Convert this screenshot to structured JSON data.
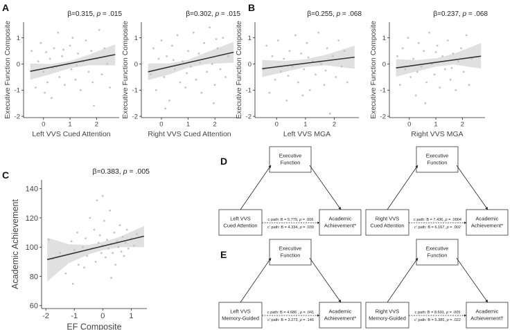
{
  "panel_letters": {
    "A": "A",
    "B": "B",
    "C": "C",
    "D": "D",
    "E": "E"
  },
  "chart_data": [
    {
      "id": "A1",
      "type": "scatter",
      "title_beta": "β=0.315, ",
      "title_p_label": "p",
      " title_p_value": "",
      "title_p": " = .015",
      "xlabel": "Left VVS Cued Attention",
      "ylabel": "Executive Function Composite",
      "xlim": [
        -0.75,
        2.85
      ],
      "ylim": [
        -2.05,
        1.6
      ],
      "xticks": [
        0,
        1,
        2
      ],
      "yticks": [
        -2,
        -1,
        0,
        1
      ],
      "fit": {
        "x": [
          -0.5,
          2.7
        ],
        "y": [
          -0.28,
          0.36
        ]
      },
      "ci": {
        "x": [
          -0.5,
          0.3,
          1.0,
          1.7,
          2.7
        ],
        "upper": [
          0.02,
          0.0,
          0.12,
          0.35,
          0.75
        ],
        "lower": [
          -0.6,
          -0.38,
          -0.16,
          -0.05,
          -0.05
        ]
      },
      "points": [
        [
          -0.45,
          0.5
        ],
        [
          -0.3,
          -0.9
        ],
        [
          -0.2,
          0.1
        ],
        [
          -0.1,
          0.8
        ],
        [
          0.0,
          -0.3
        ],
        [
          0.1,
          0.45
        ],
        [
          0.15,
          -0.7
        ],
        [
          0.25,
          0.2
        ],
        [
          0.3,
          -1.3
        ],
        [
          0.4,
          0.6
        ],
        [
          0.5,
          -0.1
        ],
        [
          0.55,
          1.2
        ],
        [
          0.6,
          -0.5
        ],
        [
          0.7,
          0.3
        ],
        [
          0.8,
          -0.8
        ],
        [
          0.9,
          0.0
        ],
        [
          1.0,
          0.7
        ],
        [
          1.05,
          -0.2
        ],
        [
          1.1,
          1.0
        ],
        [
          1.2,
          -0.6
        ],
        [
          1.3,
          0.4
        ],
        [
          1.4,
          -1.0
        ],
        [
          1.5,
          0.1
        ],
        [
          1.6,
          0.9
        ],
        [
          1.7,
          -0.3
        ],
        [
          1.8,
          0.5
        ],
        [
          1.9,
          -1.6
        ],
        [
          2.0,
          0.2
        ],
        [
          2.1,
          1.3
        ],
        [
          2.2,
          -0.4
        ],
        [
          2.3,
          0.6
        ],
        [
          2.4,
          0.0
        ],
        [
          2.5,
          -0.9
        ],
        [
          0.35,
          -0.15
        ],
        [
          0.75,
          0.55
        ],
        [
          1.25,
          -0.05
        ],
        [
          0.05,
          -1.1
        ],
        [
          1.85,
          -0.7
        ]
      ]
    },
    {
      "id": "A2",
      "type": "scatter",
      "title_beta": "β=0.302, ",
      "title_p_label": "p",
      "title_p": " = .015",
      "xlabel": "Right VVS Cued Attention",
      "ylabel": "Executive Function Composite",
      "xlim": [
        -0.75,
        2.85
      ],
      "ylim": [
        -2.05,
        1.6
      ],
      "xticks": [
        0,
        1,
        2
      ],
      "yticks": [
        -2,
        -1,
        0,
        1
      ],
      "fit": {
        "x": [
          -0.5,
          2.7
        ],
        "y": [
          -0.3,
          0.45
        ]
      },
      "ci": {
        "x": [
          -0.5,
          0.3,
          1.0,
          1.7,
          2.7
        ],
        "upper": [
          0.02,
          0.02,
          0.16,
          0.45,
          0.85
        ],
        "lower": [
          -0.62,
          -0.4,
          -0.14,
          0.0,
          0.05
        ]
      },
      "points": [
        [
          -0.4,
          -0.4
        ],
        [
          -0.3,
          0.6
        ],
        [
          -0.2,
          -1.0
        ],
        [
          -0.1,
          0.2
        ],
        [
          0.0,
          0.9
        ],
        [
          0.1,
          -0.5
        ],
        [
          0.2,
          0.3
        ],
        [
          0.3,
          -1.4
        ],
        [
          0.4,
          0.7
        ],
        [
          0.5,
          -0.2
        ],
        [
          0.6,
          1.1
        ],
        [
          0.7,
          -0.7
        ],
        [
          0.8,
          0.1
        ],
        [
          0.9,
          -0.9
        ],
        [
          1.0,
          0.5
        ],
        [
          1.1,
          -0.1
        ],
        [
          1.2,
          1.2
        ],
        [
          1.3,
          -0.6
        ],
        [
          1.4,
          0.4
        ],
        [
          1.5,
          -1.1
        ],
        [
          1.6,
          0.8
        ],
        [
          1.7,
          -0.3
        ],
        [
          1.8,
          1.4
        ],
        [
          1.9,
          0.0
        ],
        [
          2.0,
          -0.8
        ],
        [
          2.1,
          0.6
        ],
        [
          2.2,
          -0.2
        ],
        [
          2.3,
          1.0
        ],
        [
          2.4,
          -0.5
        ],
        [
          2.5,
          0.3
        ],
        [
          0.45,
          0.15
        ],
        [
          0.95,
          -0.35
        ],
        [
          1.45,
          0.05
        ],
        [
          1.95,
          -1.5
        ],
        [
          0.15,
          -1.7
        ],
        [
          2.05,
          0.95
        ]
      ]
    },
    {
      "id": "B1",
      "type": "scatter",
      "title_beta": "β=0.255, ",
      "title_p_label": "p",
      "title_p": " = .068",
      "xlabel": "Left VVS MGA",
      "ylabel": "Executive Function Composite",
      "xlim": [
        -0.75,
        2.85
      ],
      "ylim": [
        -2.05,
        1.6
      ],
      "xticks": [
        0,
        1,
        2
      ],
      "yticks": [
        -2,
        -1,
        0,
        1
      ],
      "fit": {
        "x": [
          -0.5,
          2.7
        ],
        "y": [
          -0.18,
          0.26
        ]
      },
      "ci": {
        "x": [
          -0.5,
          0.3,
          1.0,
          1.7,
          2.7
        ],
        "upper": [
          0.15,
          0.12,
          0.18,
          0.35,
          0.7
        ],
        "lower": [
          -0.5,
          -0.3,
          -0.12,
          -0.05,
          -0.18
        ]
      },
      "points": [
        [
          -0.45,
          -0.2
        ],
        [
          -0.35,
          0.7
        ],
        [
          -0.25,
          -1.1
        ],
        [
          -0.15,
          0.3
        ],
        [
          -0.05,
          -0.6
        ],
        [
          0.05,
          0.9
        ],
        [
          0.15,
          -0.3
        ],
        [
          0.25,
          0.2
        ],
        [
          0.35,
          -1.4
        ],
        [
          0.45,
          0.5
        ],
        [
          0.55,
          -0.1
        ],
        [
          0.65,
          1.1
        ],
        [
          0.75,
          -0.7
        ],
        [
          0.85,
          0.4
        ],
        [
          0.95,
          -0.2
        ],
        [
          1.05,
          0.8
        ],
        [
          1.15,
          -1.0
        ],
        [
          1.25,
          0.1
        ],
        [
          1.35,
          -0.4
        ],
        [
          1.45,
          1.2
        ],
        [
          1.55,
          0.0
        ],
        [
          1.65,
          -0.8
        ],
        [
          1.75,
          0.6
        ],
        [
          1.85,
          -1.9
        ],
        [
          1.95,
          0.3
        ],
        [
          2.05,
          -0.5
        ],
        [
          2.15,
          0.9
        ],
        [
          2.25,
          -0.1
        ],
        [
          2.35,
          0.5
        ],
        [
          2.45,
          -0.7
        ],
        [
          0.4,
          -0.45
        ],
        [
          1.1,
          0.25
        ],
        [
          1.7,
          -0.25
        ],
        [
          0.9,
          -1.2
        ]
      ]
    },
    {
      "id": "B2",
      "type": "scatter",
      "title_beta": "β=0.237, ",
      "title_p_label": "p",
      "title_p": " = .068",
      "xlabel": "Right VVS MGA",
      "ylabel": "Executive Function Composite",
      "xlim": [
        -0.75,
        2.85
      ],
      "ylim": [
        -2.05,
        1.6
      ],
      "xticks": [
        0,
        1,
        2
      ],
      "yticks": [
        -2,
        -1,
        0,
        1
      ],
      "fit": {
        "x": [
          -0.5,
          2.7
        ],
        "y": [
          -0.15,
          0.3
        ]
      },
      "ci": {
        "x": [
          -0.5,
          0.3,
          1.0,
          1.7,
          2.7
        ],
        "upper": [
          0.18,
          0.15,
          0.22,
          0.4,
          0.8
        ],
        "lower": [
          -0.48,
          -0.28,
          -0.1,
          -0.02,
          -0.18
        ]
      },
      "points": [
        [
          -0.45,
          0.3
        ],
        [
          -0.35,
          -0.8
        ],
        [
          -0.25,
          0.6
        ],
        [
          -0.15,
          -0.2
        ],
        [
          -0.05,
          1.0
        ],
        [
          0.05,
          -0.5
        ],
        [
          0.15,
          0.2
        ],
        [
          0.25,
          -1.2
        ],
        [
          0.35,
          0.8
        ],
        [
          0.45,
          -0.1
        ],
        [
          0.55,
          0.5
        ],
        [
          0.65,
          -0.7
        ],
        [
          0.75,
          1.2
        ],
        [
          0.85,
          0.0
        ],
        [
          0.95,
          -0.4
        ],
        [
          1.05,
          0.7
        ],
        [
          1.15,
          -0.9
        ],
        [
          1.25,
          0.3
        ],
        [
          1.35,
          -0.2
        ],
        [
          1.45,
          0.9
        ],
        [
          1.55,
          -0.6
        ],
        [
          1.65,
          0.4
        ],
        [
          1.75,
          -1.0
        ],
        [
          1.85,
          0.1
        ],
        [
          1.95,
          0.6
        ],
        [
          2.05,
          -0.3
        ],
        [
          2.15,
          1.1
        ],
        [
          2.25,
          -0.8
        ],
        [
          2.35,
          0.2
        ],
        [
          0.3,
          -0.3
        ],
        [
          1.0,
          0.45
        ],
        [
          1.6,
          -0.15
        ],
        [
          0.6,
          -1.5
        ]
      ]
    },
    {
      "id": "C",
      "type": "scatter",
      "title_beta": "β=0.383, ",
      "title_p_label": "p",
      "title_p": " = .005",
      "xlabel": "EF Composite",
      "ylabel": "Academic Achievement",
      "xlim": [
        -2.15,
        1.55
      ],
      "ylim": [
        58,
        146
      ],
      "xticks": [
        -2,
        -1,
        0,
        1
      ],
      "yticks": [
        60,
        80,
        100,
        120,
        140
      ],
      "fit": {
        "x": [
          -1.95,
          1.45
        ],
        "y": [
          91.5,
          107.5
        ]
      },
      "ci": {
        "x": [
          -1.95,
          -1.2,
          -0.5,
          0.0,
          0.6,
          1.45
        ],
        "upper": [
          106.5,
          102.0,
          101.5,
          103.5,
          107.0,
          114.5
        ],
        "lower": [
          76.5,
          89.0,
          95.0,
          98.0,
          100.0,
          100.0
        ]
      },
      "points": [
        [
          -1.9,
          105
        ],
        [
          -1.75,
          92
        ],
        [
          -1.5,
          96
        ],
        [
          -1.3,
          82
        ],
        [
          -1.1,
          104
        ],
        [
          -1.0,
          98
        ],
        [
          -0.9,
          110
        ],
        [
          -0.85,
          88
        ],
        [
          -0.7,
          100
        ],
        [
          -0.6,
          106
        ],
        [
          -0.55,
          94
        ],
        [
          -0.45,
          120
        ],
        [
          -0.4,
          99
        ],
        [
          -0.3,
          112
        ],
        [
          -0.25,
          90
        ],
        [
          -0.15,
          103
        ],
        [
          -0.1,
          108
        ],
        [
          -0.05,
          96
        ],
        [
          0.0,
          101
        ],
        [
          0.05,
          118
        ],
        [
          0.1,
          93
        ],
        [
          0.15,
          105
        ],
        [
          0.2,
          99
        ],
        [
          0.25,
          125
        ],
        [
          0.3,
          102
        ],
        [
          0.35,
          96
        ],
        [
          0.4,
          110
        ],
        [
          0.45,
          88
        ],
        [
          0.5,
          104
        ],
        [
          0.55,
          100
        ],
        [
          0.6,
          115
        ],
        [
          0.65,
          97
        ],
        [
          0.7,
          107
        ],
        [
          0.75,
          94
        ],
        [
          0.8,
          103
        ],
        [
          0.85,
          112
        ],
        [
          0.9,
          99
        ],
        [
          1.0,
          106
        ],
        [
          1.1,
          101
        ],
        [
          1.2,
          109
        ],
        [
          -0.2,
          132
        ],
        [
          0.0,
          135
        ],
        [
          -0.65,
          86
        ],
        [
          0.3,
          79
        ],
        [
          -1.05,
          75
        ]
      ]
    }
  ],
  "diagrams": [
    {
      "id": "D1",
      "mediator": [
        "Executive",
        "Function"
      ],
      "predictor": [
        "Left VVS",
        "Cued Attention"
      ],
      "outcome": [
        "Academic",
        "Achievement*"
      ],
      "c_path": {
        "label": "c path: B = 5.779, ",
        "p_label": "p",
        "p_val": " = .006"
      },
      "cprime_path": {
        "label": "c' path: B = 4.334, ",
        "p_label": "p",
        "p_val": " = .039"
      }
    },
    {
      "id": "D2",
      "mediator": [
        "Executive",
        "Function"
      ],
      "predictor": [
        "Right VVS",
        "Cued Attention"
      ],
      "outcome": [
        "Academic",
        "Achievement*"
      ],
      "c_path": {
        "label": "c path: B = 7.436, ",
        "p_label": "p",
        "p_val": " = .0004"
      },
      "cprime_path": {
        "label": "c' path: B = 6.167, ",
        "p_label": "p",
        "p_val": " = .002"
      }
    },
    {
      "id": "E1",
      "mediator": [
        "Executive",
        "Function"
      ],
      "predictor": [
        "Left VVS",
        "Memory-Guided"
      ],
      "outcome": [
        "Academic",
        "Achievement*"
      ],
      "c_path": {
        "label": "c path: B = 4.686 , ",
        "p_label": "p",
        "p_val": " = .041"
      },
      "cprime_path": {
        "label": "c' path: B = 3.273, ",
        "p_label": "p",
        "p_val": " = .146"
      }
    },
    {
      "id": "E2",
      "mediator": [
        "Executive",
        "Function"
      ],
      "predictor": [
        "Right VVS",
        "Memory-Guided"
      ],
      "outcome": [
        "Academic",
        "Achievement†"
      ],
      "c_path": {
        "label": "c path: B = 8.691, ",
        "p_label": "p",
        "p_val": " = .005"
      },
      "cprime_path": {
        "label": "c' path: B = 5.385, ",
        "p_label": "p",
        "p_val": " = .022"
      }
    }
  ],
  "colors": {
    "ci": "#e0e0e0",
    "line": "#333333",
    "point": "#c4c4c4",
    "axis": "#222222",
    "text": "#444444"
  }
}
